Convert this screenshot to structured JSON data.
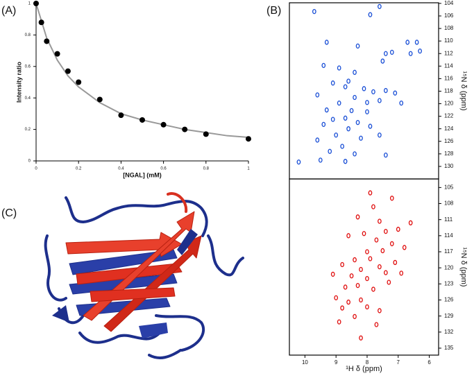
{
  "panel_labels": [
    "(A)",
    "(B)",
    "(C)"
  ],
  "chart_data": [
    {
      "type": "scatter",
      "xlabel": "[NGAL] (mM)",
      "ylabel": "Intensity ratio",
      "xlim": [
        0,
        1
      ],
      "ylim": [
        0,
        1
      ],
      "xticks": [
        0,
        0.2,
        0.4,
        0.6,
        0.8,
        1
      ],
      "yticks": [
        0,
        0.2,
        0.4,
        0.6,
        0.8,
        1
      ],
      "y_axis_side": "left",
      "frame": false,
      "series": [
        {
          "mode": "line",
          "color": "#999999",
          "x": [
            0,
            0.05,
            0.1,
            0.15,
            0.2,
            0.3,
            0.4,
            0.5,
            0.6,
            0.7,
            0.8,
            0.9,
            1
          ],
          "values": [
            1,
            0.78,
            0.64,
            0.54,
            0.47,
            0.37,
            0.3,
            0.26,
            0.23,
            0.2,
            0.18,
            0.16,
            0.15
          ]
        },
        {
          "mode": "markers",
          "color": "#000000",
          "x": [
            0,
            0.025,
            0.05,
            0.1,
            0.15,
            0.2,
            0.3,
            0.4,
            0.5,
            0.6,
            0.7,
            0.8,
            1
          ],
          "values": [
            1,
            0.88,
            0.76,
            0.68,
            0.57,
            0.5,
            0.39,
            0.29,
            0.26,
            0.23,
            0.2,
            0.17,
            0.14
          ]
        }
      ]
    },
    {
      "type": "scatter",
      "ylabel": "¹⁵N δ (ppm)",
      "xlim": [
        10.5,
        5.7
      ],
      "ylim": [
        132,
        103.9
      ],
      "yticks": [
        104,
        106,
        108,
        110,
        112,
        114,
        116,
        118,
        120,
        122,
        124,
        126,
        128,
        130
      ],
      "y_axis_side": "right",
      "frame": true,
      "series": [
        {
          "mode": "peaks",
          "color": "#1a4fd6",
          "x": [
            9.7,
            7.6,
            7.9,
            9.3,
            8.3,
            6.4,
            6.7,
            7.2,
            7.4,
            6.6,
            6.3,
            7.5,
            9.4,
            8.9,
            8.4,
            9.1,
            8.7,
            8.1,
            7.4,
            7.8,
            7.1,
            9.6,
            8.4,
            8.9,
            7.6,
            6.9,
            9.3,
            8.5,
            8.0,
            8.7,
            9.1,
            8.3,
            9.4,
            7.9,
            8.6,
            9.0,
            8.2,
            9.6,
            8.8,
            9.2,
            8.4,
            7.4,
            10.2,
            8.7,
            9.5,
            7.6,
            8.0,
            8.6
          ],
          "values": [
            105.3,
            104.5,
            105.8,
            110.2,
            110.8,
            110.2,
            110.2,
            111.8,
            112.0,
            112.0,
            111.6,
            113.2,
            113.9,
            114.3,
            115.0,
            116.7,
            117.3,
            117.6,
            117.9,
            118.1,
            118.3,
            118.6,
            119.0,
            119.9,
            119.5,
            119.9,
            121.0,
            121.1,
            121.3,
            122.3,
            122.5,
            123.0,
            123.3,
            123.6,
            124.0,
            125.0,
            125.5,
            125.8,
            126.8,
            127.6,
            128.0,
            128.2,
            129.3,
            129.2,
            129.0,
            125.0,
            119.8,
            116.4
          ]
        }
      ]
    },
    {
      "type": "scatter",
      "xlabel": "¹H δ (ppm)",
      "ylabel": "¹⁵N δ (ppm)",
      "xlim": [
        10.5,
        5.7
      ],
      "ylim": [
        136.3,
        103.4
      ],
      "xticks": [
        10,
        9,
        8,
        7,
        6
      ],
      "yticks": [
        105,
        108,
        111,
        114,
        117,
        120,
        123,
        126,
        129,
        132,
        135
      ],
      "y_axis_side": "right",
      "frame": true,
      "series": [
        {
          "mode": "peaks",
          "color": "#e01010",
          "x": [
            7.9,
            7.2,
            7.8,
            8.3,
            7.6,
            6.6,
            7.0,
            7.4,
            8.1,
            8.6,
            7.7,
            7.2,
            6.8,
            7.5,
            8.0,
            7.9,
            8.4,
            7.1,
            7.6,
            8.8,
            8.2,
            7.4,
            6.9,
            8.5,
            9.1,
            8.0,
            7.3,
            8.7,
            8.3,
            7.8,
            9.0,
            8.6,
            8.2,
            8.8,
            8.0,
            7.6,
            8.4,
            8.9,
            7.7,
            8.2
          ],
          "values": [
            106.0,
            107.0,
            108.6,
            110.5,
            111.3,
            111.6,
            112.8,
            113.2,
            113.6,
            114.0,
            114.8,
            115.5,
            116.2,
            116.8,
            117.0,
            118.3,
            118.5,
            119.0,
            119.8,
            119.4,
            120.3,
            120.9,
            121.0,
            121.5,
            121.2,
            122.0,
            122.7,
            123.6,
            123.3,
            124.0,
            125.6,
            126.4,
            126.0,
            127.5,
            127.3,
            128.0,
            129.1,
            130.1,
            130.6,
            133.1
          ]
        }
      ]
    }
  ]
}
